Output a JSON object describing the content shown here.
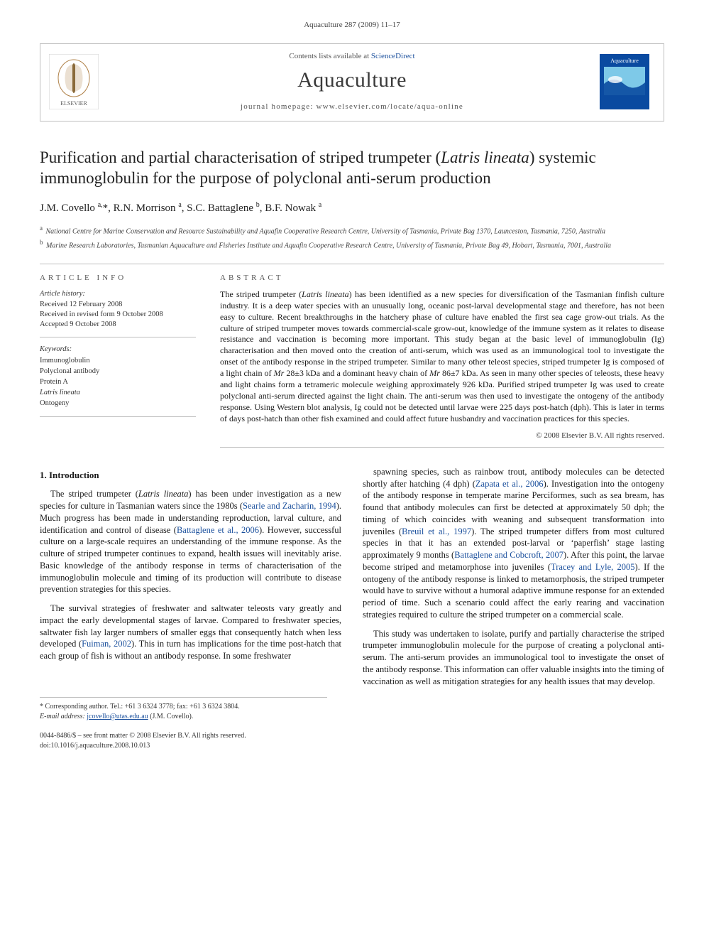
{
  "running_head": "Aquaculture 287 (2009) 11–17",
  "masthead": {
    "contents_prefix": "Contents lists available at ",
    "contents_link": "ScienceDirect",
    "journal": "Aquaculture",
    "homepage_label": "journal homepage: www.elsevier.com/locate/aqua-online",
    "elsevier_color": "#ef8200",
    "journal_cover_bg": "#0a4aa0",
    "journal_cover_accent": "#7ec9e8"
  },
  "title_parts": {
    "pre": "Purification and partial characterisation of striped trumpeter (",
    "species": "Latris lineata",
    "post": ") systemic immunoglobulin for the purpose of polyclonal anti-serum production"
  },
  "authors_html": "J.M. Covello <sup>a,</sup>*, R.N. Morrison <sup>a</sup>, S.C. Battaglene <sup>b</sup>, B.F. Nowak <sup>a</sup>",
  "affiliations": [
    {
      "sup": "a",
      "text": "National Centre for Marine Conservation and Resource Sustainability and Aquafin Cooperative Research Centre, University of Tasmania, Private Bag 1370, Launceston, Tasmania, 7250, Australia"
    },
    {
      "sup": "b",
      "text": "Marine Research Laboratories, Tasmanian Aquaculture and Fisheries Institute and Aquafin Cooperative Research Centre, University of Tasmania, Private Bag 49, Hobart, Tasmania, 7001, Australia"
    }
  ],
  "article_info_head": "ARTICLE INFO",
  "abstract_head": "ABSTRACT",
  "history": {
    "head": "Article history:",
    "lines": [
      "Received 12 February 2008",
      "Received in revised form 9 October 2008",
      "Accepted 9 October 2008"
    ]
  },
  "keywords": {
    "head": "Keywords:",
    "items": [
      "Immunoglobulin",
      "Polyclonal antibody",
      "Protein A",
      "Latris lineata",
      "Ontogeny"
    ]
  },
  "abstract": "The striped trumpeter (Latris lineata) has been identified as a new species for diversification of the Tasmanian finfish culture industry. It is a deep water species with an unusually long, oceanic post-larval developmental stage and therefore, has not been easy to culture. Recent breakthroughs in the hatchery phase of culture have enabled the first sea cage grow-out trials. As the culture of striped trumpeter moves towards commercial-scale grow-out, knowledge of the immune system as it relates to disease resistance and vaccination is becoming more important. This study began at the basic level of immunoglobulin (Ig) characterisation and then moved onto the creation of anti-serum, which was used as an immunological tool to investigate the onset of the antibody response in the striped trumpeter. Similar to many other teleost species, striped trumpeter Ig is composed of a light chain of Mr 28±3 kDa and a dominant heavy chain of Mr 86±7 kDa. As seen in many other species of teleosts, these heavy and light chains form a tetrameric molecule weighing approximately 926 kDa. Purified striped trumpeter Ig was used to create polyclonal anti-serum directed against the light chain. The anti-serum was then used to investigate the ontogeny of the antibody response. Using Western blot analysis, Ig could not be detected until larvae were 225 days post-hatch (dph). This is later in terms of days post-hatch than other fish examined and could affect future husbandry and vaccination practices for this species.",
  "copyright": "© 2008 Elsevier B.V. All rights reserved.",
  "section1_title": "1. Introduction",
  "para1": "The striped trumpeter (Latris lineata) has been under investigation as a new species for culture in Tasmanian waters since the 1980s (Searle and Zacharin, 1994). Much progress has been made in understanding reproduction, larval culture, and identification and control of disease (Battaglene et al., 2006). However, successful culture on a large-scale requires an understanding of the immune response. As the culture of striped trumpeter continues to expand, health issues will inevitably arise. Basic knowledge of the antibody response in terms of characterisation of the immunoglobulin molecule and timing of its production will contribute to disease prevention strategies for this species.",
  "para2": "The survival strategies of freshwater and saltwater teleosts vary greatly and impact the early developmental stages of larvae. Compared to freshwater species, saltwater fish lay larger numbers of smaller eggs that consequently hatch when less developed (Fuiman, 2002). This in turn has implications for the time post-hatch that each group of fish is without an antibody response. In some freshwater",
  "para3": "spawning species, such as rainbow trout, antibody molecules can be detected shortly after hatching (4 dph) (Zapata et al., 2006). Investigation into the ontogeny of the antibody response in temperate marine Perciformes, such as sea bream, has found that antibody molecules can first be detected at approximately 50 dph; the timing of which coincides with weaning and subsequent transformation into juveniles (Breuil et al., 1997). The striped trumpeter differs from most cultured species in that it has an extended post-larval or ‘paperfish’ stage lasting approximately 9 months (Battaglene and Cobcroft, 2007). After this point, the larvae become striped and metamorphose into juveniles (Tracey and Lyle, 2005). If the ontogeny of the antibody response is linked to metamorphosis, the striped trumpeter would have to survive without a humoral adaptive immune response for an extended period of time. Such a scenario could affect the early rearing and vaccination strategies required to culture the striped trumpeter on a commercial scale.",
  "para4": "This study was undertaken to isolate, purify and partially characterise the striped trumpeter immunoglobulin molecule for the purpose of creating a polyclonal anti-serum. The anti-serum provides an immunological tool to investigate the onset of the antibody response. This information can offer valuable insights into the timing of vaccination as well as mitigation strategies for any health issues that may develop.",
  "footnote": {
    "corr": "* Corresponding author. Tel.: +61 3 6324 3778; fax: +61 3 6324 3804.",
    "email_label": "E-mail address:",
    "email": "jcovello@utas.edu.au",
    "email_owner": "(J.M. Covello)."
  },
  "doi": {
    "line1": "0044-8486/$ – see front matter © 2008 Elsevier B.V. All rights reserved.",
    "line2": "doi:10.1016/j.aquaculture.2008.10.013"
  },
  "link_color": "#1a4f9c"
}
